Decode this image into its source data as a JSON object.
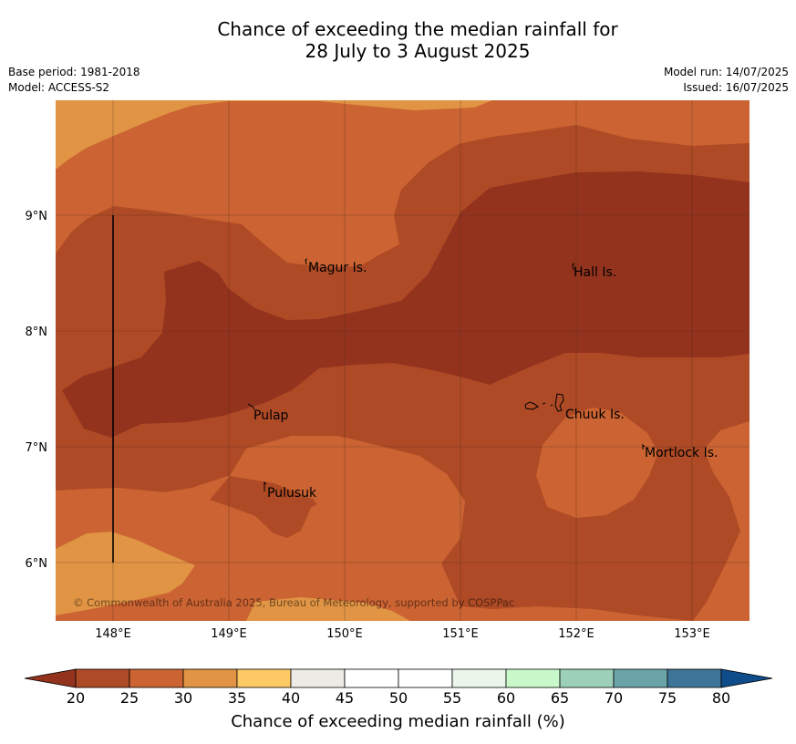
{
  "title": {
    "line1": "Chance of exceeding the median rainfall for",
    "line2": "28 July to 3 August 2025"
  },
  "meta_left": {
    "base_period": "Base period: 1981-2018",
    "model": "Model: ACCESS-S2"
  },
  "meta_right": {
    "model_run": "Model run: 14/07/2025",
    "issued": "Issued: 16/07/2025"
  },
  "map": {
    "lon_ticks": [
      "148°E",
      "149°E",
      "150°E",
      "151°E",
      "152°E",
      "153°E"
    ],
    "lat_ticks": [
      "9°N",
      "8°N",
      "7°N",
      "6°N"
    ],
    "places": [
      "Magur Is.",
      "Hall Is.",
      "Pulap",
      "Chuuk Is.",
      "Mortlock Is.",
      "Pulusuk"
    ],
    "copyright": "© Commonwealth of Australia 2025, Bureau of Meteorology, supported by COSPPac"
  },
  "colorbar": {
    "ticks": [
      "20",
      "25",
      "30",
      "35",
      "40",
      "45",
      "50",
      "55",
      "60",
      "65",
      "70",
      "75",
      "80"
    ],
    "colors": [
      "#93331e",
      "#ae4a25",
      "#cb6332",
      "#e09444",
      "#fdc965",
      "#eeebe7",
      "#ffffff",
      "#ffffff",
      "#eaf6ea",
      "#c9f9cb",
      "#9dd0b8",
      "#6ba4a8",
      "#3e7497",
      "#0f4c8a"
    ],
    "label": "Chance of exceeding median rainfall (%)"
  }
}
